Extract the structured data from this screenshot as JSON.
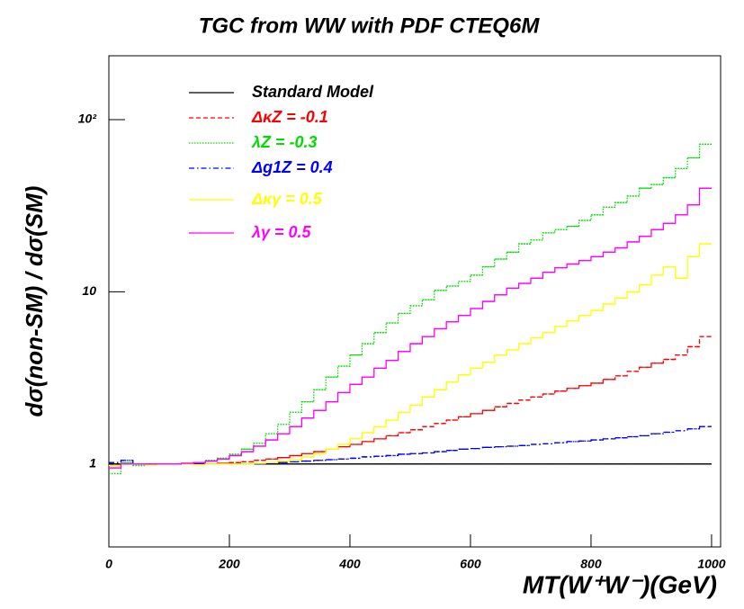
{
  "chart_data": {
    "type": "histogram",
    "title": "TGC from WW with PDF CTEQ6M",
    "xlabel": "MT(W⁺W⁻)(GeV)",
    "ylabel": "dσ(non-SM) / dσ(SM)",
    "log_y": true,
    "bins": [
      0,
      20,
      40,
      60,
      80,
      100,
      120,
      140,
      160,
      180,
      200,
      220,
      240,
      260,
      280,
      300,
      320,
      340,
      360,
      380,
      400,
      420,
      440,
      460,
      480,
      500,
      520,
      540,
      560,
      580,
      600,
      620,
      640,
      660,
      680,
      700,
      720,
      740,
      760,
      780,
      800,
      820,
      840,
      860,
      880,
      900,
      920,
      940,
      960,
      980,
      1000
    ],
    "xlim": [
      0,
      1015
    ],
    "xticks": [
      0,
      200,
      400,
      600,
      800,
      1000
    ],
    "ylim": [
      0.33,
      235
    ],
    "yticks": [
      1,
      10,
      {
        "value": 100,
        "label": "10²"
      }
    ],
    "legend": "upper-left",
    "series": [
      {
        "name": "Standard Model",
        "color": "#000000",
        "style": "solid",
        "values": [
          1,
          1,
          1,
          1,
          1,
          1,
          1,
          1,
          1,
          1,
          1,
          1,
          1,
          1,
          1,
          1,
          1,
          1,
          1,
          1,
          1,
          1,
          1,
          1,
          1,
          1,
          1,
          1,
          1,
          1,
          1,
          1,
          1,
          1,
          1,
          1,
          1,
          1,
          1,
          1,
          1,
          1,
          1,
          1,
          1,
          1,
          1,
          1,
          1,
          1
        ]
      },
      {
        "name": "ΔκZ = -0.1",
        "color": "#ff0000",
        "style": "dashed",
        "values": [
          0.98,
          1.0,
          1.0,
          1.0,
          1.0,
          1.0,
          1.0,
          1.0,
          1.0,
          1.01,
          1.02,
          1.03,
          1.05,
          1.07,
          1.09,
          1.12,
          1.15,
          1.18,
          1.22,
          1.26,
          1.3,
          1.35,
          1.4,
          1.46,
          1.52,
          1.58,
          1.65,
          1.72,
          1.8,
          1.88,
          1.96,
          2.05,
          2.15,
          2.25,
          2.35,
          2.45,
          2.55,
          2.65,
          2.75,
          2.85,
          2.95,
          3.1,
          3.25,
          3.45,
          3.65,
          3.85,
          4.05,
          4.3,
          4.8,
          5.5
        ]
      },
      {
        "name": "λZ = -0.3",
        "color": "#00dd00",
        "style": "dotted",
        "values": [
          0.88,
          1.02,
          0.98,
          1.0,
          1.0,
          1.0,
          1.01,
          1.02,
          1.05,
          1.08,
          1.14,
          1.22,
          1.32,
          1.5,
          1.7,
          2.0,
          2.3,
          2.7,
          3.2,
          3.7,
          4.3,
          5.0,
          5.8,
          6.6,
          7.5,
          8.3,
          9.0,
          10.2,
          10.8,
          11.5,
          12.5,
          14,
          15.5,
          17,
          19,
          20,
          22,
          23,
          24,
          26,
          28,
          31,
          33,
          36,
          40,
          42,
          46,
          52,
          60,
          72
        ]
      },
      {
        "name": "Δg1Z = 0.4",
        "color": "#0000ff",
        "style": "dashdot",
        "values": [
          1.02,
          1.05,
          1.0,
          0.99,
          1.0,
          1.0,
          1.0,
          1.0,
          1.0,
          1.0,
          1.0,
          1.0,
          1.0,
          1.01,
          1.02,
          1.03,
          1.04,
          1.05,
          1.06,
          1.07,
          1.08,
          1.1,
          1.11,
          1.12,
          1.14,
          1.15,
          1.16,
          1.18,
          1.2,
          1.22,
          1.23,
          1.25,
          1.26,
          1.27,
          1.28,
          1.3,
          1.31,
          1.33,
          1.35,
          1.36,
          1.38,
          1.4,
          1.42,
          1.44,
          1.46,
          1.5,
          1.53,
          1.56,
          1.6,
          1.65
        ]
      },
      {
        "name": "Δκγ = 0.5",
        "color": "#ffff00",
        "style": "solid",
        "values": [
          0.98,
          1.0,
          1.0,
          0.99,
          1.0,
          1.0,
          1.0,
          0.99,
          1.0,
          1.0,
          1.0,
          1.0,
          1.01,
          1.02,
          1.04,
          1.06,
          1.1,
          1.15,
          1.22,
          1.3,
          1.4,
          1.52,
          1.65,
          1.8,
          2.0,
          2.2,
          2.45,
          2.7,
          3.0,
          3.3,
          3.6,
          3.9,
          4.3,
          4.6,
          5.0,
          5.4,
          5.8,
          6.3,
          6.8,
          7.3,
          7.8,
          8.5,
          9.2,
          10,
          11,
          12.5,
          14,
          12,
          16,
          19
        ]
      },
      {
        "name": "λγ = 0.5",
        "color": "#ff00ff",
        "style": "solid",
        "values": [
          0.95,
          1.0,
          1.0,
          1.0,
          1.0,
          1.0,
          1.01,
          1.02,
          1.04,
          1.07,
          1.12,
          1.18,
          1.27,
          1.38,
          1.5,
          1.65,
          1.85,
          2.05,
          2.3,
          2.6,
          2.9,
          3.2,
          3.6,
          4.0,
          4.5,
          5.0,
          5.5,
          6.1,
          6.7,
          7.3,
          8.0,
          8.8,
          9.6,
          10.5,
          11.2,
          12.0,
          13.0,
          13.8,
          14.5,
          15.2,
          16,
          17,
          18,
          19.5,
          21,
          23,
          25,
          28,
          32,
          40
        ]
      }
    ]
  }
}
